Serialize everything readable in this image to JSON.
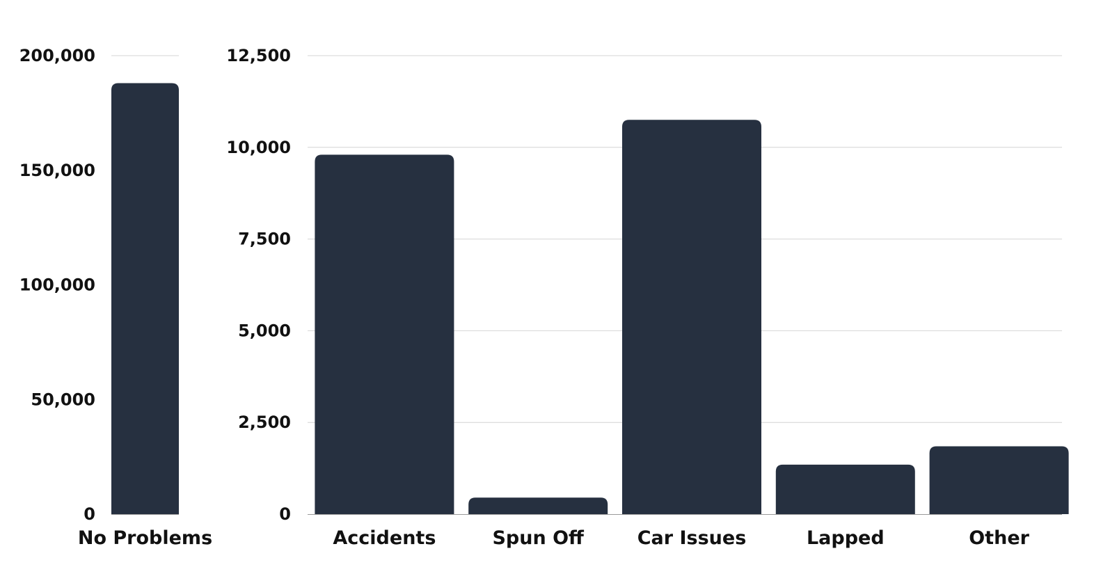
{
  "chart_data": [
    {
      "type": "bar",
      "categories": [
        "No Problems"
      ],
      "values": [
        188000
      ],
      "ylim": [
        0,
        200000
      ],
      "yticks": [
        "0",
        "50,000",
        "100,000",
        "150,000",
        "200,000"
      ],
      "ytick_values": [
        0,
        50000,
        100000,
        150000,
        200000
      ],
      "grid": true
    },
    {
      "type": "bar",
      "categories": [
        "Accidents",
        "Spun Off",
        "Car Issues",
        "Lapped",
        "Other"
      ],
      "values": [
        9800,
        450,
        10750,
        1350,
        1850
      ],
      "ylim": [
        0,
        12500
      ],
      "yticks": [
        "0",
        "2,500",
        "5,000",
        "7,500",
        "10,000",
        "12,500"
      ],
      "ytick_values": [
        0,
        2500,
        5000,
        7500,
        10000,
        12500
      ],
      "grid": true
    }
  ],
  "colors": {
    "bar": "#263040",
    "grid": "#d4d4d4",
    "text": "#111111"
  }
}
